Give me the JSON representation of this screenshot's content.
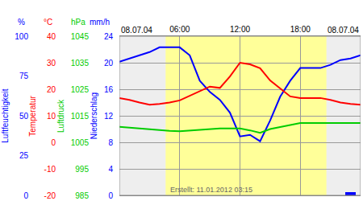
{
  "chart_data": {
    "type": "line",
    "date": "08.07.04",
    "footer": "Erstellt: 11.01.2012 03:15",
    "daylight": [
      4.6,
      20.6
    ],
    "xlim": [
      0,
      24
    ],
    "xticks": [
      {
        "value": 6,
        "label": "06:00"
      },
      {
        "value": 12,
        "label": "12:00"
      },
      {
        "value": 18,
        "label": "18:00"
      }
    ],
    "x": [
      0,
      1,
      2,
      3,
      4,
      5,
      6,
      7,
      8,
      9,
      10,
      11,
      12,
      13,
      14,
      15,
      16,
      17,
      18,
      19,
      20,
      21,
      22,
      23,
      24
    ],
    "grid": true,
    "series": [
      {
        "name": "Luftfeuchtigkeit",
        "unit": "%",
        "color": "#0000ff",
        "axis": "y",
        "ylim": [
          0,
          100
        ],
        "yticks": [
          0,
          25,
          50,
          75,
          100
        ],
        "values": [
          84,
          86,
          88,
          90,
          93,
          93,
          93,
          88,
          72,
          65,
          60,
          52,
          37,
          38,
          34,
          47,
          62,
          72,
          80,
          80,
          80,
          82,
          85,
          86,
          88
        ]
      },
      {
        "name": "Temperatur",
        "unit": "°C",
        "color": "#ff0000",
        "axis": "y2",
        "ylim": [
          -20,
          40
        ],
        "yticks": [
          -20,
          -10,
          0,
          10,
          20,
          30,
          40
        ],
        "values": [
          16.7,
          16,
          15,
          14.2,
          14.5,
          15,
          15.8,
          17.5,
          19.4,
          21,
          20.5,
          24.8,
          30,
          29.4,
          27.9,
          23.3,
          20.3,
          17.3,
          16.7,
          16.7,
          16.7,
          16,
          15,
          14.5,
          14.2
        ]
      },
      {
        "name": "Luftdruck",
        "unit": "hPa",
        "color": "#00cc00",
        "axis": "y3",
        "ylim": [
          985,
          1045
        ],
        "yticks": [
          985,
          995,
          1005,
          1015,
          1025,
          1035,
          1045
        ],
        "values": [
          1010.8,
          1010.5,
          1010,
          1009.8,
          1009.5,
          1009.3,
          1009.2,
          1009.5,
          1009.8,
          1010,
          1010.2,
          1010.2,
          1010.2,
          1009.5,
          1008.6,
          1010,
          1010.8,
          1011.5,
          1012.3,
          1012.3,
          1012.3,
          1012.3,
          1012.3,
          1012.3,
          1012.3
        ]
      },
      {
        "name": "Niederschlag",
        "unit": "mm/h",
        "color": "#0000ff",
        "axis": "y4",
        "type": "bar",
        "ylim": [
          0,
          24
        ],
        "yticks": [
          0,
          4,
          8,
          12,
          16,
          20,
          24
        ],
        "values": [
          0,
          0,
          0,
          0,
          0,
          0,
          0,
          0,
          0,
          0,
          0,
          0,
          0,
          0,
          0,
          0,
          0,
          0,
          0,
          0,
          0,
          0,
          0,
          0.5,
          0
        ]
      }
    ]
  }
}
